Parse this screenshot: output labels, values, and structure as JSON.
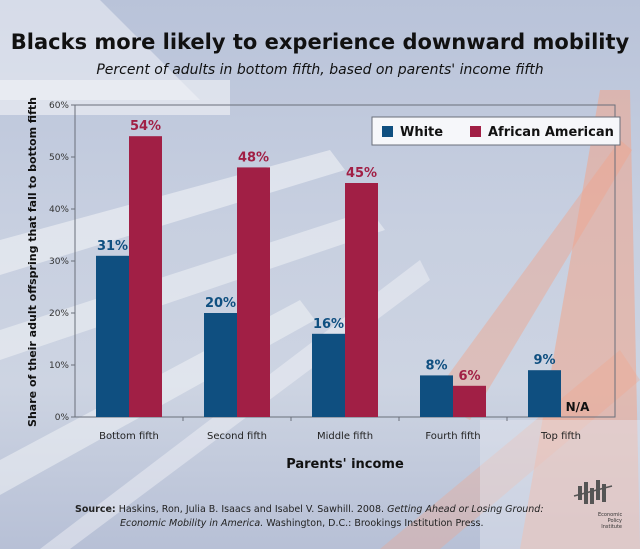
{
  "chart_data": {
    "type": "bar",
    "title": "Blacks more likely to experience downward mobility",
    "subtitle": "Percent of adults in bottom fifth, based on parents' income fifth",
    "xlabel": "Parents' income",
    "ylabel": "Share of their adult offspring that fall to bottom fifth",
    "categories": [
      "Bottom fifth",
      "Second fifth",
      "Middle fifth",
      "Fourth fifth",
      "Top fifth"
    ],
    "series": [
      {
        "name": "White",
        "color": "#0f4f80",
        "values": [
          31,
          20,
          16,
          8,
          9
        ],
        "labels": [
          "31%",
          "20%",
          "16%",
          "8%",
          "9%"
        ]
      },
      {
        "name": "African American",
        "color": "#a11f45",
        "values": [
          54,
          48,
          45,
          6,
          null
        ],
        "labels": [
          "54%",
          "48%",
          "45%",
          "6%",
          "N/A"
        ]
      }
    ],
    "ylim": [
      0,
      60
    ],
    "yticks": [
      0,
      10,
      20,
      30,
      40,
      50,
      60
    ],
    "ytick_labels": [
      "0%",
      "10%",
      "20%",
      "30%",
      "40%",
      "50%",
      "60%"
    ],
    "legend_position": "top-right",
    "grid": false
  },
  "source": {
    "label": "Source:",
    "text_1": "Haskins, Ron, Julia B. Isaacs and Isabel V. Sawhill. 2008.",
    "title_italic_1": "Getting Ahead or Losing Ground:",
    "title_italic_2": "Economic Mobility in America.",
    "text_2": "Washington, D.C.: Brookings Institution Press."
  },
  "logo": {
    "text": "Economic Policy Institute"
  }
}
